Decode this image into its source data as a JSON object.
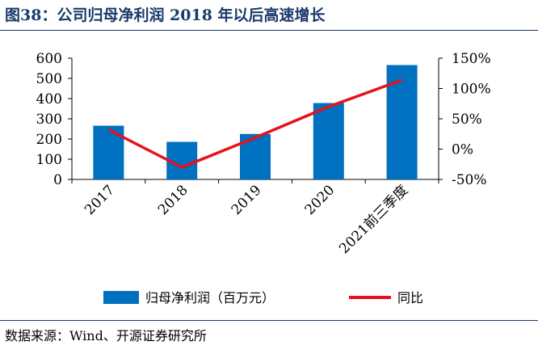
{
  "header": {
    "title": "图38：公司归母净利润 2018 年以后高速增长"
  },
  "footer": {
    "source": "数据来源：Wind、开源证券研究所"
  },
  "colors": {
    "bar": "#0070C0",
    "line": "#E8111A",
    "title": "#1a3a6b"
  },
  "chart_data": {
    "type": "bar",
    "title": "",
    "categories": [
      "2017",
      "2018",
      "2019",
      "2020",
      "2021前三季度"
    ],
    "series": [
      {
        "name": "归母净利润（百万元）",
        "type": "bar",
        "axis": "left",
        "values": [
          266,
          186,
          225,
          378,
          566
        ]
      },
      {
        "name": "同比",
        "type": "line",
        "axis": "right",
        "values": [
          32,
          -30,
          19,
          70,
          114
        ]
      }
    ],
    "y_left": {
      "min": 0,
      "max": 600,
      "ticks": [
        "0",
        "100",
        "200",
        "300",
        "400",
        "500",
        "600"
      ]
    },
    "y_right": {
      "min": -50,
      "max": 150,
      "ticks": [
        "-50%",
        "0%",
        "50%",
        "100%",
        "150%"
      ]
    },
    "grid": false,
    "legend": "bottom"
  }
}
